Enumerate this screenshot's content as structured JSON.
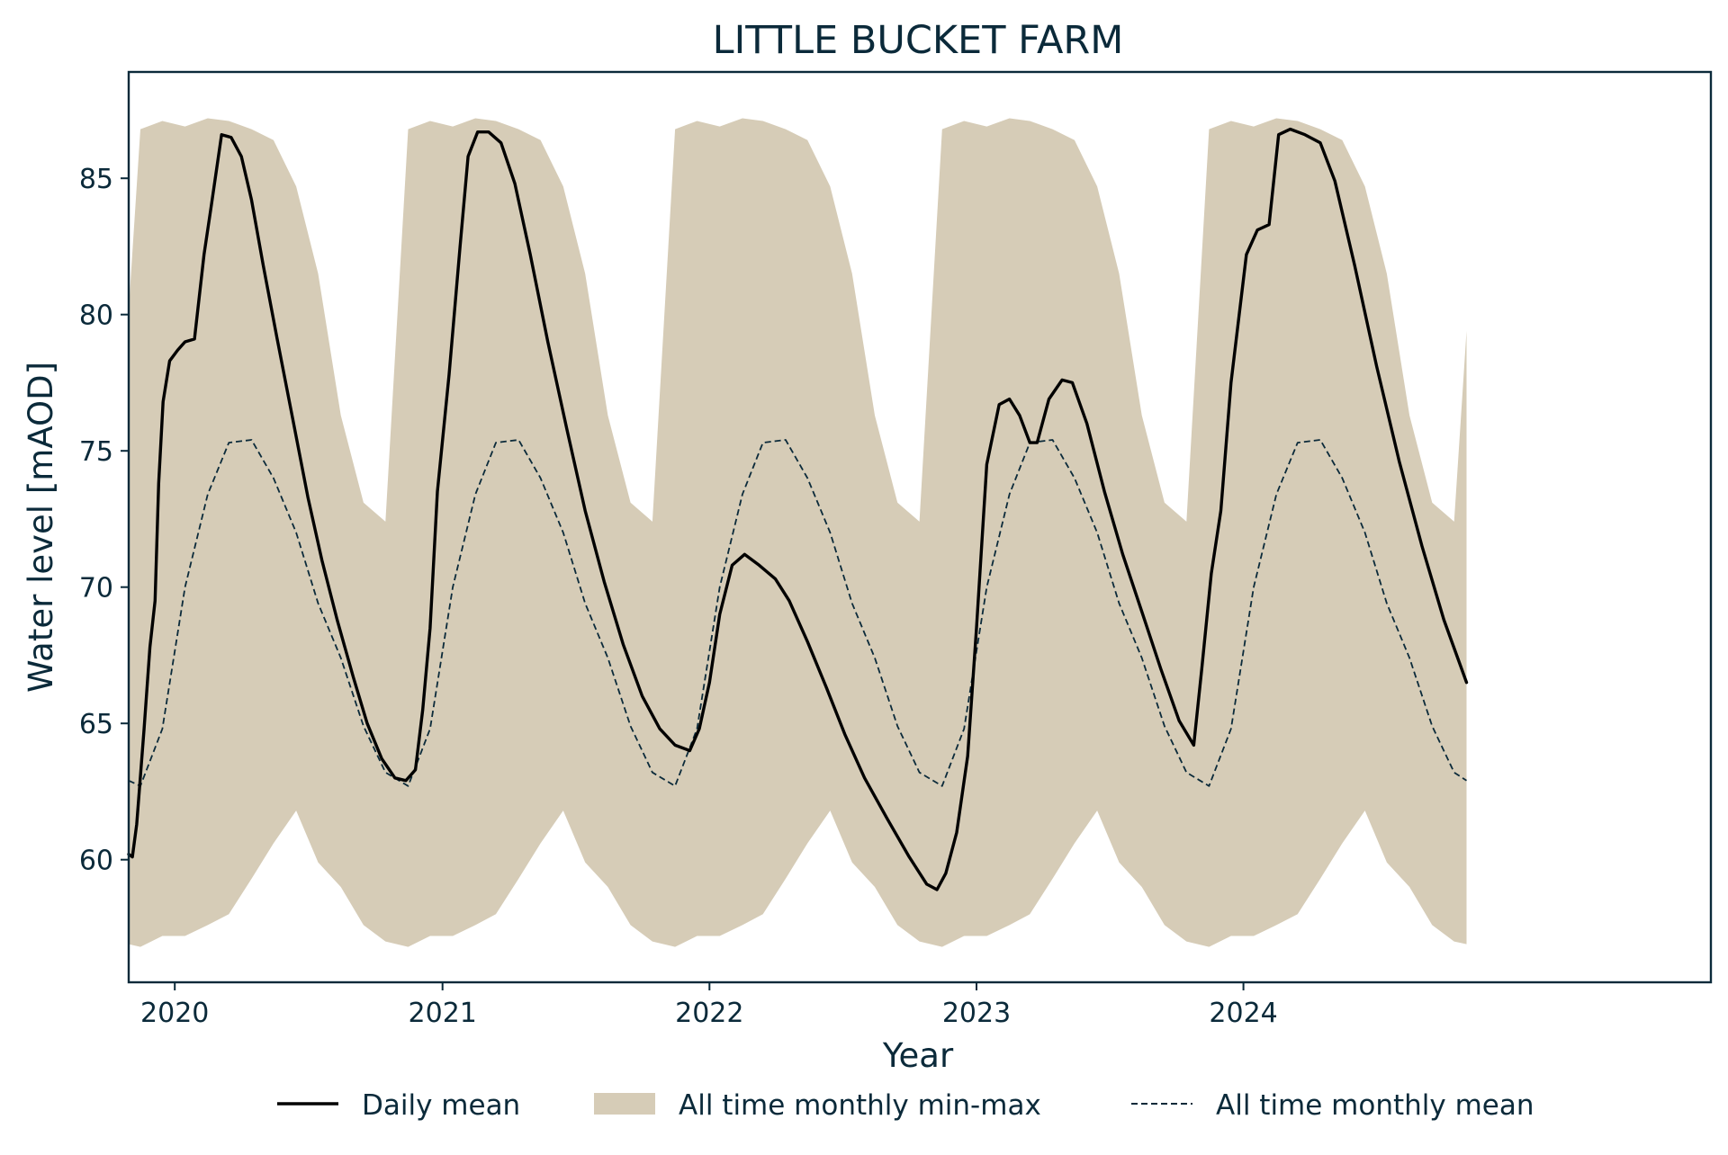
{
  "chart_data": {
    "type": "line",
    "title": "LITTLE BUCKET FARM",
    "xlabel": "Year",
    "ylabel": "Water level [mAOD]",
    "xlim": [
      "2019-10-30",
      "2025-10-01"
    ],
    "ylim": [
      55.5,
      88.9
    ],
    "x_ticks": [
      "2020",
      "2021",
      "2022",
      "2023",
      "2024"
    ],
    "y_ticks": [
      60,
      65,
      70,
      75,
      80,
      85
    ],
    "grid": false,
    "legend_position": "bottom-center",
    "legend": [
      "Daily mean",
      "All time monthly min-max",
      "All time monthly mean"
    ],
    "colors": {
      "daily_mean": "#000000",
      "band_fill": "#d6ccb7",
      "monthly_mean": "#0b2a3a",
      "text": "#0b2a3a",
      "axes": "#0b2a3a"
    },
    "series": [
      {
        "name": "Daily mean",
        "style": "solid",
        "points": [
          [
            "2019-10-30",
            60.2
          ],
          [
            "2019-11-04",
            60.1
          ],
          [
            "2019-11-10",
            61.3
          ],
          [
            "2019-11-20",
            64.8
          ],
          [
            "2019-11-28",
            67.8
          ],
          [
            "2019-12-05",
            69.5
          ],
          [
            "2019-12-10",
            73.8
          ],
          [
            "2019-12-16",
            76.8
          ],
          [
            "2019-12-25",
            78.3
          ],
          [
            "2020-01-05",
            78.7
          ],
          [
            "2020-01-15",
            79.0
          ],
          [
            "2020-01-28",
            79.1
          ],
          [
            "2020-02-10",
            82.2
          ],
          [
            "2020-02-20",
            84.0
          ],
          [
            "2020-03-05",
            86.6
          ],
          [
            "2020-03-18",
            86.5
          ],
          [
            "2020-04-01",
            85.8
          ],
          [
            "2020-04-15",
            84.2
          ],
          [
            "2020-05-01",
            81.8
          ],
          [
            "2020-05-20",
            79.1
          ],
          [
            "2020-06-10",
            76.2
          ],
          [
            "2020-07-01",
            73.3
          ],
          [
            "2020-07-20",
            71.0
          ],
          [
            "2020-08-10",
            68.8
          ],
          [
            "2020-09-01",
            66.7
          ],
          [
            "2020-09-20",
            65.0
          ],
          [
            "2020-10-10",
            63.7
          ],
          [
            "2020-10-28",
            63.0
          ],
          [
            "2020-11-12",
            62.9
          ],
          [
            "2020-11-25",
            63.3
          ],
          [
            "2020-12-05",
            65.5
          ],
          [
            "2020-12-15",
            68.5
          ],
          [
            "2020-12-25",
            73.5
          ],
          [
            "2021-01-10",
            77.8
          ],
          [
            "2021-01-25",
            82.5
          ],
          [
            "2021-02-05",
            85.8
          ],
          [
            "2021-02-18",
            86.7
          ],
          [
            "2021-03-05",
            86.7
          ],
          [
            "2021-03-22",
            86.3
          ],
          [
            "2021-04-10",
            84.8
          ],
          [
            "2021-05-01",
            82.2
          ],
          [
            "2021-05-25",
            79.0
          ],
          [
            "2021-06-20",
            75.8
          ],
          [
            "2021-07-15",
            72.8
          ],
          [
            "2021-08-10",
            70.2
          ],
          [
            "2021-09-05",
            67.9
          ],
          [
            "2021-10-01",
            66.0
          ],
          [
            "2021-10-25",
            64.8
          ],
          [
            "2021-11-15",
            64.2
          ],
          [
            "2021-12-05",
            64.0
          ],
          [
            "2021-12-18",
            64.8
          ],
          [
            "2022-01-01",
            66.5
          ],
          [
            "2022-01-15",
            69.0
          ],
          [
            "2022-02-01",
            70.8
          ],
          [
            "2022-02-18",
            71.2
          ],
          [
            "2022-03-10",
            70.8
          ],
          [
            "2022-04-01",
            70.3
          ],
          [
            "2022-04-20",
            69.5
          ],
          [
            "2022-05-15",
            68.0
          ],
          [
            "2022-06-10",
            66.3
          ],
          [
            "2022-07-05",
            64.6
          ],
          [
            "2022-08-01",
            63.0
          ],
          [
            "2022-09-01",
            61.5
          ],
          [
            "2022-10-01",
            60.1
          ],
          [
            "2022-10-25",
            59.1
          ],
          [
            "2022-11-08",
            58.9
          ],
          [
            "2022-11-20",
            59.5
          ],
          [
            "2022-12-05",
            61.0
          ],
          [
            "2022-12-20",
            63.8
          ],
          [
            "2023-01-01",
            68.5
          ],
          [
            "2023-01-15",
            74.5
          ],
          [
            "2023-02-01",
            76.7
          ],
          [
            "2023-02-15",
            76.9
          ],
          [
            "2023-03-01",
            76.3
          ],
          [
            "2023-03-15",
            75.3
          ],
          [
            "2023-03-25",
            75.3
          ],
          [
            "2023-04-10",
            76.9
          ],
          [
            "2023-04-28",
            77.6
          ],
          [
            "2023-05-12",
            77.5
          ],
          [
            "2023-06-01",
            76.0
          ],
          [
            "2023-06-25",
            73.5
          ],
          [
            "2023-07-20",
            71.2
          ],
          [
            "2023-08-15",
            69.1
          ],
          [
            "2023-09-10",
            67.0
          ],
          [
            "2023-10-05",
            65.1
          ],
          [
            "2023-10-25",
            64.2
          ],
          [
            "2023-11-05",
            67.0
          ],
          [
            "2023-11-18",
            70.5
          ],
          [
            "2023-12-01",
            72.8
          ],
          [
            "2023-12-15",
            77.5
          ],
          [
            "2024-01-05",
            82.2
          ],
          [
            "2024-01-20",
            83.1
          ],
          [
            "2024-02-05",
            83.3
          ],
          [
            "2024-02-18",
            86.6
          ],
          [
            "2024-03-05",
            86.8
          ],
          [
            "2024-03-25",
            86.6
          ],
          [
            "2024-04-15",
            86.3
          ],
          [
            "2024-05-05",
            84.9
          ],
          [
            "2024-06-01",
            81.8
          ],
          [
            "2024-07-01",
            78.1
          ],
          [
            "2024-08-01",
            74.6
          ],
          [
            "2024-09-01",
            71.5
          ],
          [
            "2024-10-01",
            68.8
          ],
          [
            "2024-11-01",
            66.5
          ]
        ]
      },
      {
        "name": "All time monthly mean",
        "style": "dashed",
        "points": [
          [
            "2019-10-30",
            62.9
          ],
          [
            "2019-11-15",
            62.7
          ],
          [
            "2019-12-15",
            64.8
          ],
          [
            "2020-01-15",
            70.0
          ],
          [
            "2020-02-15",
            73.4
          ],
          [
            "2020-03-15",
            75.3
          ],
          [
            "2020-04-15",
            75.4
          ],
          [
            "2020-05-15",
            74.0
          ],
          [
            "2020-06-15",
            72.0
          ],
          [
            "2020-07-15",
            69.4
          ],
          [
            "2020-08-15",
            67.4
          ],
          [
            "2020-09-15",
            64.9
          ],
          [
            "2020-10-15",
            63.2
          ],
          [
            "2020-11-15",
            62.7
          ],
          [
            "2020-12-15",
            64.8
          ],
          [
            "2021-01-15",
            70.0
          ],
          [
            "2021-02-15",
            73.4
          ],
          [
            "2021-03-15",
            75.3
          ],
          [
            "2021-04-15",
            75.4
          ],
          [
            "2021-05-15",
            74.0
          ],
          [
            "2021-06-15",
            72.0
          ],
          [
            "2021-07-15",
            69.4
          ],
          [
            "2021-08-15",
            67.4
          ],
          [
            "2021-09-15",
            64.9
          ],
          [
            "2021-10-15",
            63.2
          ],
          [
            "2021-11-15",
            62.7
          ],
          [
            "2021-12-15",
            64.8
          ],
          [
            "2022-01-15",
            70.0
          ],
          [
            "2022-02-15",
            73.4
          ],
          [
            "2022-03-15",
            75.3
          ],
          [
            "2022-04-15",
            75.4
          ],
          [
            "2022-05-15",
            74.0
          ],
          [
            "2022-06-15",
            72.0
          ],
          [
            "2022-07-15",
            69.4
          ],
          [
            "2022-08-15",
            67.4
          ],
          [
            "2022-09-15",
            64.9
          ],
          [
            "2022-10-15",
            63.2
          ],
          [
            "2022-11-15",
            62.7
          ],
          [
            "2022-12-15",
            64.8
          ],
          [
            "2023-01-15",
            70.0
          ],
          [
            "2023-02-15",
            73.4
          ],
          [
            "2023-03-15",
            75.3
          ],
          [
            "2023-04-15",
            75.4
          ],
          [
            "2023-05-15",
            74.0
          ],
          [
            "2023-06-15",
            72.0
          ],
          [
            "2023-07-15",
            69.4
          ],
          [
            "2023-08-15",
            67.4
          ],
          [
            "2023-09-15",
            64.9
          ],
          [
            "2023-10-15",
            63.2
          ],
          [
            "2023-11-15",
            62.7
          ],
          [
            "2023-12-15",
            64.8
          ],
          [
            "2024-01-15",
            70.0
          ],
          [
            "2024-02-15",
            73.4
          ],
          [
            "2024-03-15",
            75.3
          ],
          [
            "2024-04-15",
            75.4
          ],
          [
            "2024-05-15",
            74.0
          ],
          [
            "2024-06-15",
            72.0
          ],
          [
            "2024-07-15",
            69.4
          ],
          [
            "2024-08-15",
            67.4
          ],
          [
            "2024-09-15",
            64.9
          ],
          [
            "2024-10-15",
            63.2
          ],
          [
            "2024-11-01",
            62.9
          ]
        ]
      }
    ],
    "band": {
      "name": "All time monthly min-max",
      "points": [
        [
          "2019-10-30",
          56.9,
          80.2
        ],
        [
          "2019-11-15",
          56.8,
          86.8
        ],
        [
          "2019-12-15",
          57.2,
          87.1
        ],
        [
          "2020-01-15",
          57.2,
          86.9
        ],
        [
          "2020-02-15",
          57.6,
          87.2
        ],
        [
          "2020-03-15",
          58.0,
          87.1
        ],
        [
          "2020-04-15",
          59.3,
          86.8
        ],
        [
          "2020-05-15",
          60.6,
          86.4
        ],
        [
          "2020-06-15",
          61.8,
          84.7
        ],
        [
          "2020-07-15",
          59.9,
          81.5
        ],
        [
          "2020-08-15",
          59.0,
          76.3
        ],
        [
          "2020-09-15",
          57.6,
          73.1
        ],
        [
          "2020-10-15",
          57.0,
          72.4
        ],
        [
          "2020-11-15",
          56.8,
          86.8
        ],
        [
          "2020-12-15",
          57.2,
          87.1
        ],
        [
          "2021-01-15",
          57.2,
          86.9
        ],
        [
          "2021-02-15",
          57.6,
          87.2
        ],
        [
          "2021-03-15",
          58.0,
          87.1
        ],
        [
          "2021-04-15",
          59.3,
          86.8
        ],
        [
          "2021-05-15",
          60.6,
          86.4
        ],
        [
          "2021-06-15",
          61.8,
          84.7
        ],
        [
          "2021-07-15",
          59.9,
          81.5
        ],
        [
          "2021-08-15",
          59.0,
          76.3
        ],
        [
          "2021-09-15",
          57.6,
          73.1
        ],
        [
          "2021-10-15",
          57.0,
          72.4
        ],
        [
          "2021-11-15",
          56.8,
          86.8
        ],
        [
          "2021-12-15",
          57.2,
          87.1
        ],
        [
          "2022-01-15",
          57.2,
          86.9
        ],
        [
          "2022-02-15",
          57.6,
          87.2
        ],
        [
          "2022-03-15",
          58.0,
          87.1
        ],
        [
          "2022-04-15",
          59.3,
          86.8
        ],
        [
          "2022-05-15",
          60.6,
          86.4
        ],
        [
          "2022-06-15",
          61.8,
          84.7
        ],
        [
          "2022-07-15",
          59.9,
          81.5
        ],
        [
          "2022-08-15",
          59.0,
          76.3
        ],
        [
          "2022-09-15",
          57.6,
          73.1
        ],
        [
          "2022-10-15",
          57.0,
          72.4
        ],
        [
          "2022-11-15",
          56.8,
          86.8
        ],
        [
          "2022-12-15",
          57.2,
          87.1
        ],
        [
          "2023-01-15",
          57.2,
          86.9
        ],
        [
          "2023-02-15",
          57.6,
          87.2
        ],
        [
          "2023-03-15",
          58.0,
          87.1
        ],
        [
          "2023-04-15",
          59.3,
          86.8
        ],
        [
          "2023-05-15",
          60.6,
          86.4
        ],
        [
          "2023-06-15",
          61.8,
          84.7
        ],
        [
          "2023-07-15",
          59.9,
          81.5
        ],
        [
          "2023-08-15",
          59.0,
          76.3
        ],
        [
          "2023-09-15",
          57.6,
          73.1
        ],
        [
          "2023-10-15",
          57.0,
          72.4
        ],
        [
          "2023-11-15",
          56.8,
          86.8
        ],
        [
          "2023-12-15",
          57.2,
          87.1
        ],
        [
          "2024-01-15",
          57.2,
          86.9
        ],
        [
          "2024-02-15",
          57.6,
          87.2
        ],
        [
          "2024-03-15",
          58.0,
          87.1
        ],
        [
          "2024-04-15",
          59.3,
          86.8
        ],
        [
          "2024-05-15",
          60.6,
          86.4
        ],
        [
          "2024-06-15",
          61.8,
          84.7
        ],
        [
          "2024-07-15",
          59.9,
          81.5
        ],
        [
          "2024-08-15",
          59.0,
          76.3
        ],
        [
          "2024-09-15",
          57.6,
          73.1
        ],
        [
          "2024-10-15",
          57.0,
          72.4
        ],
        [
          "2024-11-01",
          56.9,
          79.4
        ]
      ]
    }
  }
}
